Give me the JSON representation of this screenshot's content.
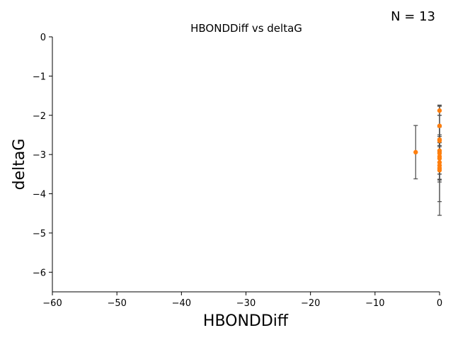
{
  "annotation": "N = 13",
  "chart_data": {
    "type": "scatter",
    "title": "HBONDDiff vs deltaG",
    "xlabel": "HBONDDiff",
    "ylabel": "deltaG",
    "xlim": [
      -60,
      0
    ],
    "ylim": [
      -6.5,
      0
    ],
    "xticks": [
      -60,
      -50,
      -40,
      -30,
      -20,
      -10,
      0
    ],
    "yticks": [
      0,
      -1,
      -2,
      -3,
      -4,
      -5,
      -6
    ],
    "xtick_labels": [
      "−60",
      "−50",
      "−40",
      "−30",
      "−20",
      "−10",
      "0"
    ],
    "ytick_labels": [
      "0",
      "−1",
      "−2",
      "−3",
      "−4",
      "−5",
      "−6"
    ],
    "grid": false,
    "marker_color": "#ff7f0e",
    "errorbar_color": "#555555",
    "points": [
      {
        "x": -3.7,
        "y": -2.94,
        "err": 0.68
      },
      {
        "x": 0,
        "y": -1.88,
        "err": 0.12
      },
      {
        "x": 0,
        "y": -2.27,
        "err": 0.5
      },
      {
        "x": 0,
        "y": -2.62,
        "err": 0.88
      },
      {
        "x": 0,
        "y": -2.65,
        "err": 0.15
      },
      {
        "x": 0,
        "y": -2.9,
        "err": 0.6
      },
      {
        "x": 0,
        "y": -2.97,
        "err": 0.43
      },
      {
        "x": 0,
        "y": -3.05,
        "err": 0.45
      },
      {
        "x": 0,
        "y": -3.1,
        "err": 1.1
      },
      {
        "x": 0,
        "y": -3.2,
        "err": 0.5
      },
      {
        "x": 0,
        "y": -3.28,
        "err": 0.35
      },
      {
        "x": 0,
        "y": -3.35,
        "err": 0.3
      },
      {
        "x": 0,
        "y": -3.4,
        "err": 1.15
      }
    ]
  }
}
